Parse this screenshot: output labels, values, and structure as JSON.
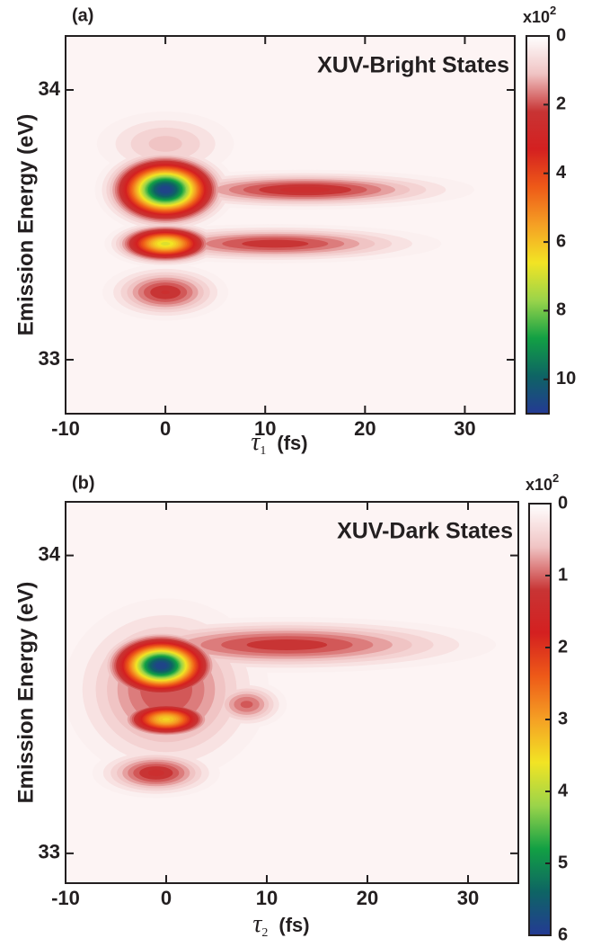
{
  "chart_data": [
    {
      "type": "heatmap",
      "panel_label": "(a)",
      "annotation": "XUV-Bright States",
      "xlabel_symbol": "τ",
      "xlabel_subscript": "1",
      "xlabel_unit": "(fs)",
      "ylabel": "Emission Energy  (eV)",
      "xlim": [
        -10,
        35
      ],
      "xticks": [
        -10,
        0,
        10,
        20,
        30
      ],
      "ylim": [
        32.8,
        34.2
      ],
      "yticks": [
        33,
        34
      ],
      "colorbar_multiplier": "x10",
      "colorbar_exponent": "2",
      "clim": [
        0,
        11
      ],
      "cticks": [
        0,
        2,
        4,
        6,
        8,
        10
      ],
      "colormap": [
        "#ffffff",
        "#f0c4c4",
        "#c83434",
        "#d42020",
        "#ee5a18",
        "#f5a024",
        "#f2e424",
        "#9ad44a",
        "#12a044",
        "#0e6464",
        "#243a94"
      ],
      "features": [
        {
          "x": 0,
          "y": 33.8,
          "value": 1.2,
          "x_width": 4,
          "y_width": 0.07
        },
        {
          "x": 14,
          "y": 33.63,
          "value": 2.6,
          "x_width": 8,
          "y_width": 0.035
        },
        {
          "x": 11,
          "y": 33.43,
          "value": 2.4,
          "x_width": 8,
          "y_width": 0.035
        },
        {
          "x": 0,
          "y": 33.25,
          "value": 2.5,
          "x_width": 3,
          "y_width": 0.05
        },
        {
          "x": 0,
          "y": 33.63,
          "value": 11,
          "x_width": 2.6,
          "y_width": 0.06
        },
        {
          "x": 0,
          "y": 33.43,
          "value": 7,
          "x_width": 2.4,
          "y_width": 0.035
        }
      ]
    },
    {
      "type": "heatmap",
      "panel_label": "(b)",
      "annotation": "XUV-Dark States",
      "xlabel_symbol": "τ",
      "xlabel_subscript": "2",
      "xlabel_unit": "(fs)",
      "ylabel": "Emission Energy  (eV)",
      "xlim": [
        -10,
        35
      ],
      "xticks": [
        -10,
        0,
        10,
        20,
        30
      ],
      "ylim": [
        32.9,
        34.18
      ],
      "yticks": [
        33,
        34
      ],
      "colorbar_multiplier": "x10",
      "colorbar_exponent": "2",
      "clim": [
        0,
        6
      ],
      "cticks": [
        0,
        1,
        2,
        3,
        4,
        5,
        6
      ],
      "colormap": [
        "#ffffff",
        "#f0c4c4",
        "#c83434",
        "#d42020",
        "#ee5a18",
        "#f5a024",
        "#f2e424",
        "#9ad44a",
        "#12a044",
        "#0e6464",
        "#243a94"
      ],
      "features": [
        {
          "x": 0,
          "y": 33.55,
          "value": 1.2,
          "x_width": 5,
          "y_width": 0.15
        },
        {
          "x": 12,
          "y": 33.7,
          "value": 1.3,
          "x_width": 10,
          "y_width": 0.045
        },
        {
          "x": 8,
          "y": 33.5,
          "value": 1.1,
          "x_width": 2,
          "y_width": 0.04
        },
        {
          "x": -1,
          "y": 33.27,
          "value": 1.4,
          "x_width": 3,
          "y_width": 0.04
        },
        {
          "x": -0.5,
          "y": 33.63,
          "value": 6,
          "x_width": 2.5,
          "y_width": 0.05
        },
        {
          "x": 0,
          "y": 33.45,
          "value": 3.5,
          "x_width": 2.2,
          "y_width": 0.03
        }
      ]
    }
  ]
}
